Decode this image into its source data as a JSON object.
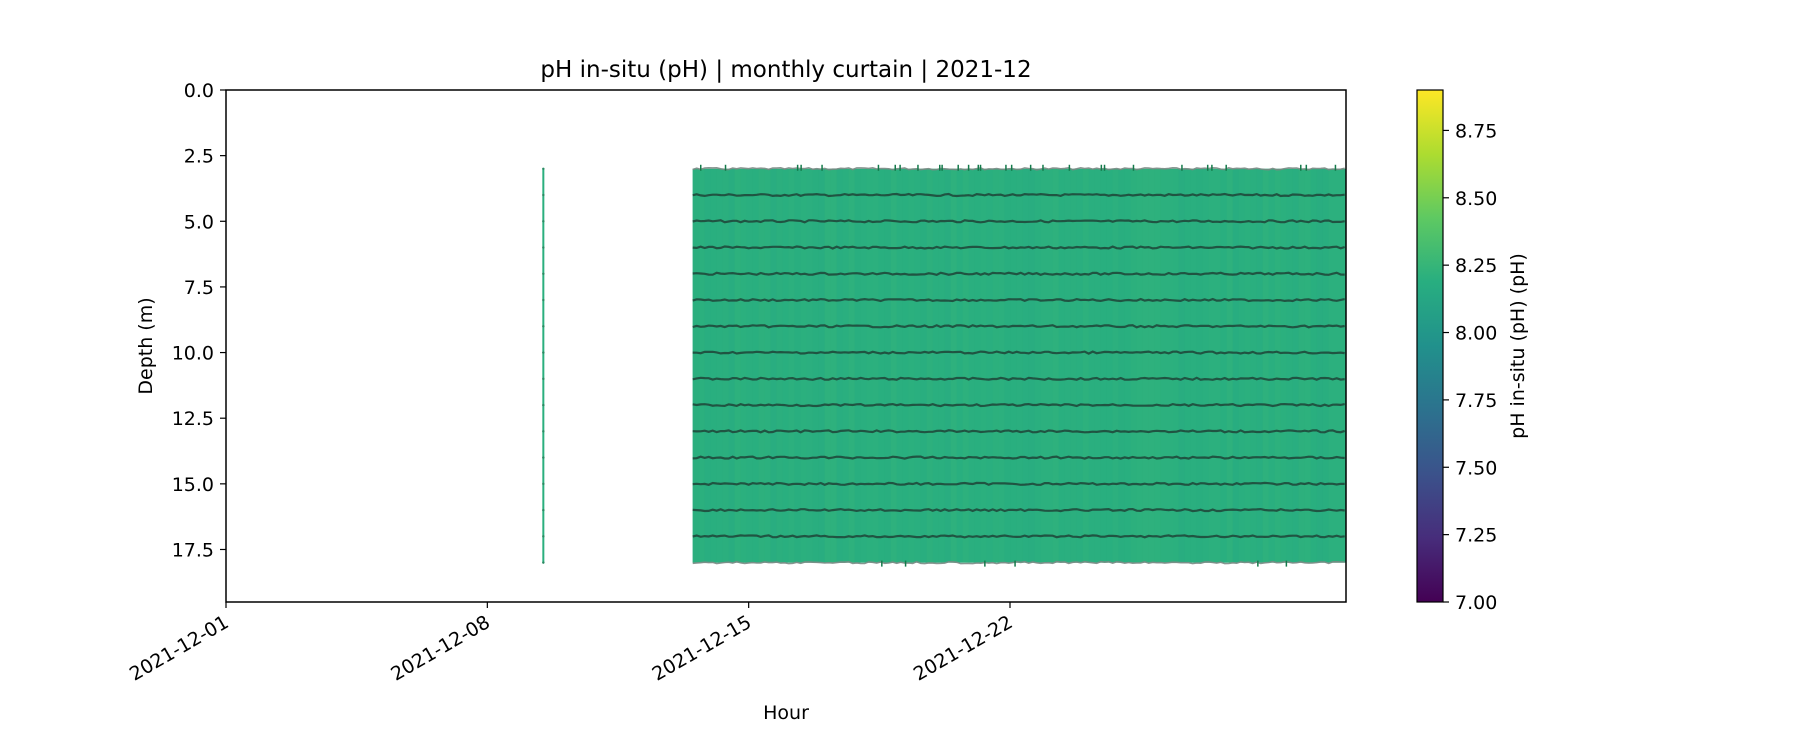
{
  "chart_data": {
    "type": "heatmap",
    "title": "pH in-situ (pH) | monthly curtain | 2021-12",
    "xlabel": "Hour",
    "ylabel": "Depth (m)",
    "x_range": [
      "2021-12-01",
      "2021-12-31"
    ],
    "ylim": [
      19.5,
      0
    ],
    "y_inverted": true,
    "x_ticks": [
      "2021-12-01",
      "2021-12-08",
      "2021-12-15",
      "2021-12-22"
    ],
    "y_ticks": [
      "0.0",
      "2.5",
      "5.0",
      "7.5",
      "10.0",
      "12.5",
      "15.0",
      "17.5"
    ],
    "y_tick_values": [
      0,
      2.5,
      5,
      7.5,
      10,
      12.5,
      15,
      17.5
    ],
    "colorbar": {
      "label": "pH in-situ (pH) (pH)",
      "vmin": 7.0,
      "vmax": 8.9,
      "ticks": [
        "7.00",
        "7.25",
        "7.50",
        "7.75",
        "8.00",
        "8.25",
        "8.50",
        "8.75"
      ],
      "tick_values": [
        7.0,
        7.25,
        7.5,
        7.75,
        8.0,
        8.25,
        8.5,
        8.75
      ],
      "colormap": "viridis"
    },
    "depth_levels": [
      3.0,
      4.0,
      5.0,
      6.0,
      7.0,
      8.0,
      9.0,
      10.0,
      11.0,
      12.0,
      13.0,
      14.0,
      15.0,
      16.0,
      17.0,
      18.0
    ],
    "profiles": [
      {
        "date": "2021-12-09 12:00",
        "ph": 8.2
      }
    ],
    "data_blocks": [
      {
        "start": "2021-12-13 12:00",
        "end": "2021-12-31",
        "depth_top": 3.0,
        "depth_bottom": 18.0,
        "ph_approx": 8.2
      }
    ]
  }
}
